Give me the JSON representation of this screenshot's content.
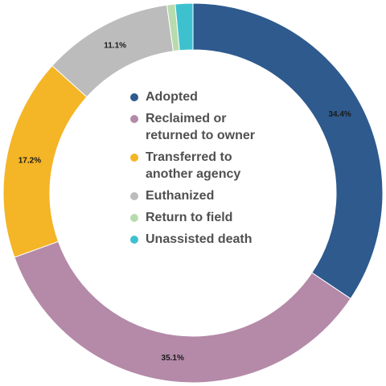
{
  "chart_data": {
    "type": "pie",
    "style": "donut",
    "slices": [
      {
        "name": "Adopted",
        "value": 34.4,
        "label": "34.4%",
        "color": "#2e5a8e"
      },
      {
        "name": "Reclaimed or returned to owner",
        "value": 35.1,
        "label": "35.1%",
        "color": "#b48aa8"
      },
      {
        "name": "Transferred to another agency",
        "value": 17.2,
        "label": "17.2%",
        "color": "#f4b526"
      },
      {
        "name": "Euthanized",
        "value": 11.1,
        "label": "11.1%",
        "color": "#bcbcbc"
      },
      {
        "name": "Return to field",
        "value": 0.7,
        "label": "",
        "color": "#b8dbae"
      },
      {
        "name": "Unassisted death",
        "value": 1.5,
        "label": "",
        "color": "#3ec1cf"
      }
    ],
    "legend_position": "center"
  }
}
